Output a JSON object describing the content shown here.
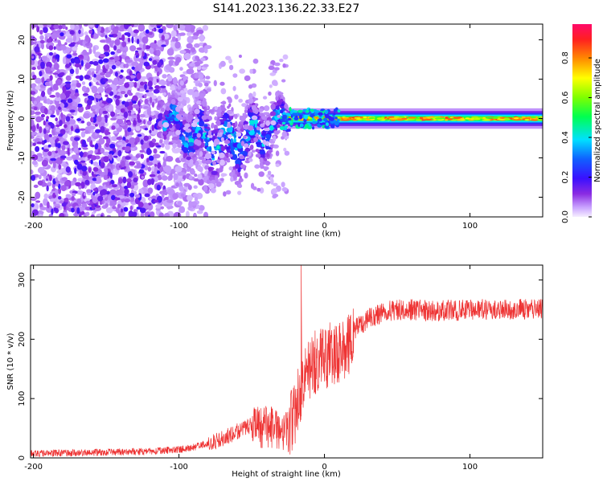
{
  "title": "S141.2023.136.22.33.E27",
  "chart_data": [
    {
      "type": "heatmap",
      "xlabel": "Height of straight line (km)",
      "ylabel": "Frequency (Hz)",
      "xlim": [
        -202,
        150
      ],
      "ylim": [
        -25,
        24
      ],
      "xticks": [
        -200,
        -100,
        0,
        100
      ],
      "yticks": [
        -20,
        -10,
        0,
        10,
        20
      ],
      "colorbar": {
        "label": "Normalized spectral amplitude",
        "range": [
          0,
          0.97
        ],
        "ticks": [
          0.0,
          0.2,
          0.4,
          0.6,
          0.8
        ],
        "tick_labels": [
          "0.0",
          "0.2",
          "0.4",
          "0.6",
          "0.8"
        ]
      },
      "ridge": {
        "center_frequency_hz": 0,
        "scatter_region_km": [
          -202,
          -110
        ],
        "transition_region_km": [
          -110,
          -25
        ],
        "stable_band_start_km": -25
      }
    },
    {
      "type": "line",
      "xlabel": "Height of straight line (km)",
      "ylabel": "SNR (10 * v/v)",
      "xlim": [
        -202,
        150
      ],
      "ylim": [
        0,
        325
      ],
      "xticks": [
        -200,
        -100,
        0,
        100
      ],
      "yticks": [
        0,
        100,
        200,
        300
      ],
      "color": "#ee3333",
      "series": [
        {
          "x": [
            -202,
            -180,
            -160,
            -140,
            -120,
            -100,
            -90,
            -80,
            -70,
            -60,
            -50,
            -40,
            -30,
            -25,
            -20,
            -15,
            -10,
            -5,
            0,
            5,
            10,
            15,
            20,
            30,
            40,
            50,
            60,
            80,
            100,
            120,
            150
          ],
          "values": [
            8,
            8,
            9,
            10,
            11,
            14,
            18,
            24,
            32,
            45,
            55,
            58,
            55,
            50,
            80,
            125,
            150,
            165,
            170,
            175,
            180,
            185,
            215,
            235,
            245,
            250,
            250,
            248,
            250,
            250,
            252
          ]
        }
      ],
      "annotations": [
        {
          "x": -16,
          "y": 325,
          "text": ""
        }
      ]
    }
  ]
}
